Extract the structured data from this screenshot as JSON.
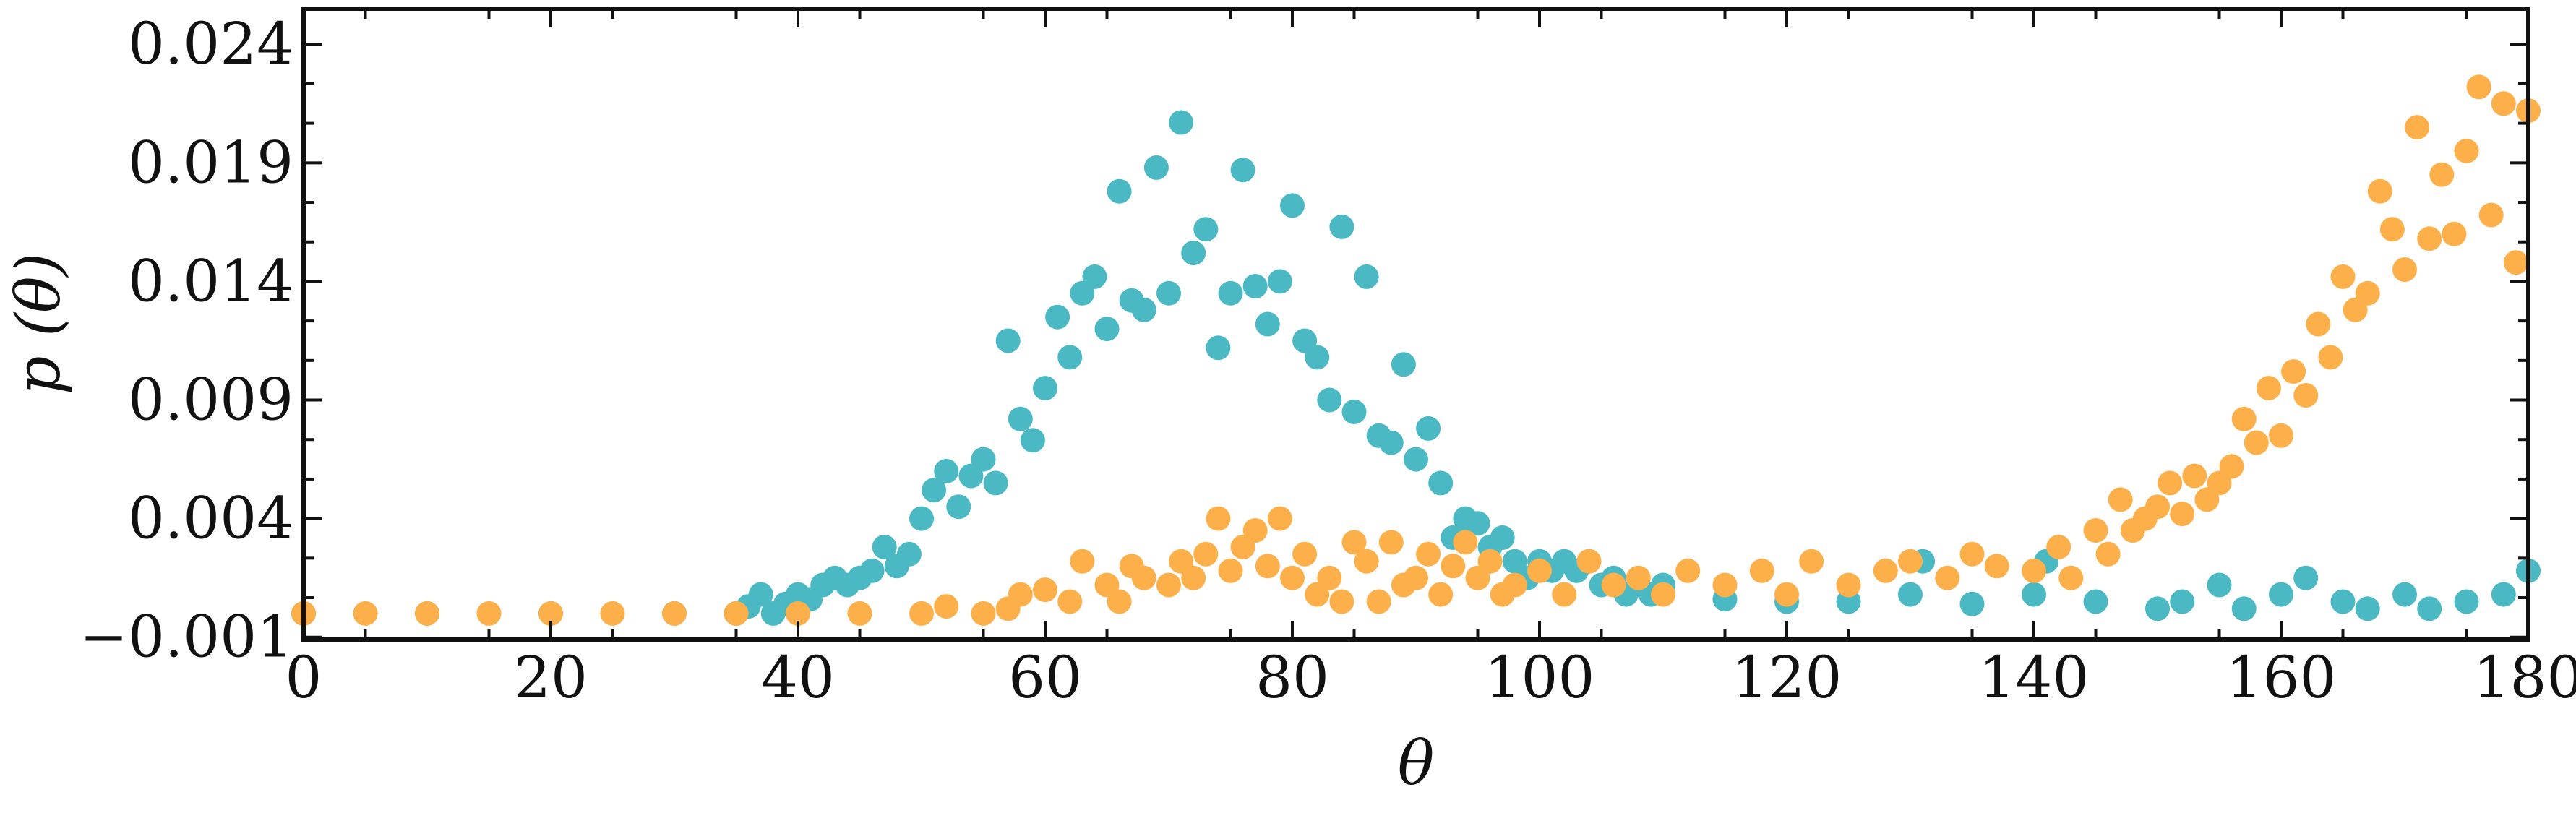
{
  "chart_data": {
    "type": "scatter",
    "title": "",
    "xlabel": "θ",
    "ylabel": "p (θ)",
    "xlim": [
      0,
      180
    ],
    "ylim": [
      -0.0011,
      0.0255
    ],
    "xticks": [
      0,
      20,
      40,
      60,
      80,
      100,
      120,
      140,
      160,
      180
    ],
    "xtick_labels": [
      "0",
      "20",
      "40",
      "60",
      "80",
      "100",
      "120",
      "140",
      "160",
      "180"
    ],
    "yticks": [
      -0.001,
      0.004,
      0.009,
      0.014,
      0.019,
      0.024
    ],
    "ytick_labels": [
      "−0.001",
      "0.004",
      "0.009",
      "0.014",
      "0.019",
      "0.024"
    ],
    "grid": false,
    "legend": "none",
    "colors": [
      "#4ab9c3",
      "#fdaf4a"
    ],
    "series": [
      {
        "color": "#4ab9c3",
        "x": [
          0,
          10,
          20,
          30,
          35,
          36,
          37,
          38,
          39,
          40,
          41,
          42,
          43,
          44,
          45,
          46,
          47,
          48,
          49,
          50,
          51,
          52,
          53,
          54,
          55,
          56,
          57,
          58,
          59,
          60,
          61,
          62,
          63,
          64,
          65,
          66,
          67,
          68,
          69,
          70,
          71,
          72,
          73,
          74,
          75,
          76,
          77,
          78,
          79,
          80,
          81,
          82,
          83,
          84,
          85,
          86,
          87,
          88,
          89,
          90,
          91,
          92,
          93,
          94,
          95,
          96,
          97,
          98,
          99,
          100,
          101,
          102,
          103,
          104,
          105,
          106,
          107,
          108,
          109,
          110,
          115,
          120,
          125,
          130,
          131,
          135,
          140,
          141,
          145,
          150,
          152,
          155,
          157,
          160,
          162,
          165,
          167,
          170,
          172,
          175,
          178,
          180
        ],
        "y": [
          0,
          0,
          0,
          0,
          0,
          0.0003,
          0.0008,
          0,
          0.0004,
          0.0008,
          0.0006,
          0.0012,
          0.0015,
          0.0012,
          0.0015,
          0.0018,
          0.0028,
          0.002,
          0.0025,
          0.004,
          0.0052,
          0.006,
          0.0045,
          0.0058,
          0.0065,
          0.0055,
          0.0115,
          0.0082,
          0.0073,
          0.0095,
          0.0125,
          0.0108,
          0.0135,
          0.0142,
          0.012,
          0.0178,
          0.0132,
          0.0128,
          0.0188,
          0.0135,
          0.0207,
          0.0152,
          0.0162,
          0.0112,
          0.0135,
          0.0187,
          0.0138,
          0.0122,
          0.014,
          0.0172,
          0.0115,
          0.0108,
          0.009,
          0.0163,
          0.0085,
          0.0142,
          0.0075,
          0.0072,
          0.0105,
          0.0065,
          0.0078,
          0.0055,
          0.0032,
          0.004,
          0.0038,
          0.0028,
          0.0032,
          0.0022,
          0.0015,
          0.0022,
          0.0018,
          0.0022,
          0.0018,
          0.0022,
          0.0012,
          0.0015,
          0.0008,
          0.0012,
          0.0008,
          0.0012,
          0.0006,
          0.0005,
          0.0005,
          0.0008,
          0.0022,
          0.0004,
          0.0008,
          0.0022,
          0.0005,
          0.0002,
          0.0005,
          0.0012,
          0.0002,
          0.0008,
          0.0015,
          0.0005,
          0.0002,
          0.0008,
          0.0002,
          0.0005,
          0.0008,
          0.0018
        ]
      },
      {
        "color": "#fdaf4a",
        "x": [
          0,
          5,
          10,
          15,
          20,
          25,
          30,
          35,
          40,
          45,
          50,
          52,
          55,
          57,
          58,
          60,
          62,
          63,
          65,
          66,
          67,
          68,
          70,
          71,
          72,
          73,
          74,
          75,
          76,
          77,
          78,
          79,
          80,
          81,
          82,
          83,
          84,
          85,
          86,
          87,
          88,
          89,
          90,
          91,
          92,
          93,
          94,
          95,
          96,
          97,
          98,
          100,
          102,
          104,
          106,
          108,
          110,
          112,
          115,
          118,
          120,
          122,
          125,
          128,
          130,
          133,
          135,
          137,
          140,
          142,
          143,
          145,
          146,
          147,
          148,
          149,
          150,
          151,
          152,
          153,
          154,
          155,
          156,
          157,
          158,
          159,
          160,
          161,
          162,
          163,
          164,
          165,
          166,
          167,
          168,
          169,
          170,
          171,
          172,
          173,
          174,
          175,
          176,
          177,
          178,
          179,
          180
        ],
        "y": [
          0,
          0,
          0,
          0,
          0,
          0,
          0,
          0,
          0,
          0,
          0,
          0.0003,
          0,
          0.0002,
          0.0008,
          0.001,
          0.0005,
          0.0022,
          0.0012,
          0.0005,
          0.002,
          0.0015,
          0.0012,
          0.0022,
          0.0015,
          0.0025,
          0.004,
          0.0018,
          0.0028,
          0.0035,
          0.002,
          0.004,
          0.0015,
          0.0025,
          0.0008,
          0.0015,
          0.0005,
          0.003,
          0.0022,
          0.0005,
          0.003,
          0.0012,
          0.0015,
          0.0025,
          0.0008,
          0.002,
          0.003,
          0.0015,
          0.0022,
          0.0008,
          0.0012,
          0.0018,
          0.0008,
          0.0022,
          0.0012,
          0.0015,
          0.0008,
          0.0018,
          0.0012,
          0.0018,
          0.0008,
          0.0022,
          0.0012,
          0.0018,
          0.0022,
          0.0015,
          0.0025,
          0.002,
          0.0018,
          0.0028,
          0.0015,
          0.0035,
          0.0025,
          0.0048,
          0.0035,
          0.004,
          0.0045,
          0.0055,
          0.0042,
          0.0058,
          0.0048,
          0.0055,
          0.0062,
          0.0082,
          0.0072,
          0.0095,
          0.0075,
          0.0102,
          0.0092,
          0.0122,
          0.0108,
          0.0142,
          0.0128,
          0.0135,
          0.0178,
          0.0162,
          0.0145,
          0.0205,
          0.0158,
          0.0185,
          0.016,
          0.0195,
          0.0222,
          0.0168,
          0.0215,
          0.0148,
          0.0212
        ]
      }
    ]
  }
}
